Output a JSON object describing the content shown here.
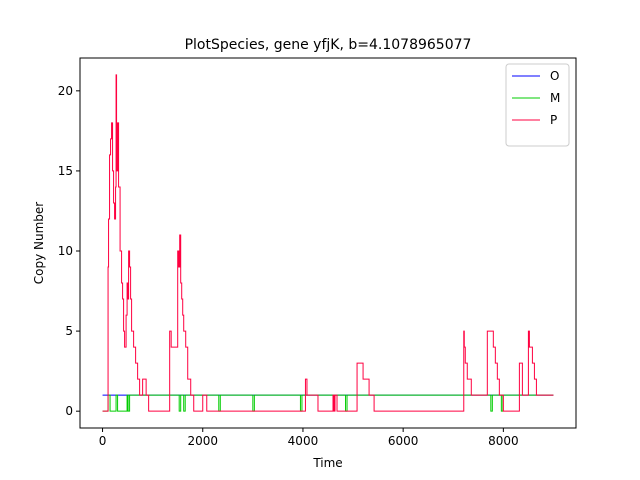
{
  "chart_data": {
    "type": "line",
    "title": "PlotSpecies, gene yfjK, b=4.1078965077",
    "xlabel": "Time",
    "ylabel": "Copy Number",
    "xlim": [
      -450,
      9450
    ],
    "ylim": [
      -1.05,
      22.05
    ],
    "xticks": [
      0,
      2000,
      4000,
      6000,
      8000
    ],
    "yticks": [
      0,
      5,
      10,
      15,
      20
    ],
    "legend_position": "top-right",
    "grid": false,
    "series": [
      {
        "name": "O",
        "color": "#0000ff",
        "x": [
          0,
          9000
        ],
        "y": [
          1,
          1
        ]
      },
      {
        "name": "M",
        "color": "#00cc00",
        "x": [
          0,
          110,
          110,
          150,
          150,
          270,
          270,
          300,
          300,
          490,
          490,
          510,
          510,
          540,
          540,
          1530,
          1530,
          1560,
          1560,
          1620,
          1620,
          1650,
          1650,
          2320,
          2320,
          2350,
          2350,
          3000,
          3000,
          3030,
          3030,
          3950,
          3950,
          3980,
          3980,
          4850,
          4850,
          4880,
          4880,
          7750,
          7750,
          7780,
          7780,
          7960,
          7960,
          7990,
          7990,
          9000
        ],
        "y": [
          0,
          0,
          1,
          1,
          0,
          0,
          1,
          1,
          0,
          0,
          1,
          1,
          0,
          0,
          1,
          1,
          0,
          0,
          1,
          1,
          0,
          0,
          1,
          1,
          0,
          0,
          1,
          1,
          0,
          0,
          1,
          1,
          0,
          0,
          1,
          1,
          0,
          0,
          1,
          1,
          0,
          0,
          1,
          1,
          0,
          0,
          1,
          1
        ]
      },
      {
        "name": "P",
        "color": "#ff0040",
        "x": [
          0,
          110,
          110,
          120,
          120,
          140,
          140,
          160,
          160,
          180,
          180,
          200,
          200,
          220,
          220,
          240,
          240,
          260,
          260,
          270,
          270,
          280,
          280,
          300,
          300,
          320,
          320,
          350,
          350,
          380,
          380,
          400,
          400,
          420,
          420,
          440,
          440,
          470,
          470,
          490,
          490,
          500,
          500,
          520,
          520,
          540,
          540,
          560,
          560,
          580,
          580,
          620,
          620,
          660,
          660,
          700,
          700,
          740,
          740,
          800,
          800,
          870,
          870,
          920,
          920,
          1340,
          1340,
          1370,
          1370,
          1390,
          1390,
          1500,
          1500,
          1520,
          1520,
          1540,
          1540,
          1560,
          1560,
          1580,
          1580,
          1600,
          1600,
          1620,
          1620,
          1660,
          1660,
          1700,
          1700,
          1760,
          1760,
          1820,
          1820,
          2000,
          2000,
          2080,
          2080,
          4050,
          4050,
          4080,
          4080,
          4300,
          4300,
          4600,
          4600,
          4620,
          4620,
          4640,
          4640,
          4680,
          4680,
          5080,
          5080,
          5200,
          5200,
          5320,
          5320,
          5420,
          5420,
          7210,
          7210,
          7220,
          7220,
          7240,
          7240,
          7280,
          7280,
          7360,
          7360,
          7680,
          7680,
          7800,
          7800,
          7840,
          7840,
          7880,
          7880,
          7920,
          7920,
          8000,
          8000,
          8320,
          8320,
          8380,
          8380,
          8500,
          8500,
          8520,
          8520,
          8540,
          8540,
          8580,
          8580,
          8620,
          8620,
          8660,
          8660,
          9000
        ],
        "y": [
          0,
          0,
          9,
          9,
          12,
          12,
          16,
          16,
          17,
          17,
          18,
          18,
          15,
          15,
          13,
          13,
          12,
          12,
          14,
          14,
          21,
          21,
          15,
          15,
          18,
          18,
          14,
          14,
          10,
          10,
          8,
          8,
          7,
          7,
          5,
          5,
          4,
          4,
          6,
          6,
          8,
          8,
          7,
          7,
          10,
          10,
          9,
          9,
          7,
          7,
          5,
          5,
          4,
          4,
          3,
          3,
          2,
          2,
          1,
          1,
          2,
          2,
          1,
          1,
          0,
          0,
          5,
          5,
          4,
          4,
          4,
          4,
          10,
          10,
          9,
          9,
          11,
          11,
          8,
          8,
          7,
          7,
          6,
          6,
          5,
          5,
          4,
          4,
          2,
          2,
          1,
          1,
          0,
          0,
          1,
          1,
          0,
          0,
          2,
          2,
          1,
          1,
          0,
          0,
          1,
          1,
          0,
          0,
          1,
          1,
          0,
          0,
          3,
          3,
          2,
          2,
          1,
          1,
          0,
          0,
          5,
          5,
          4,
          4,
          3,
          3,
          2,
          2,
          1,
          1,
          5,
          5,
          4,
          4,
          3,
          3,
          2,
          2,
          1,
          1,
          0,
          0,
          3,
          3,
          1,
          1,
          5,
          5,
          4,
          4,
          4,
          4,
          3,
          3,
          2,
          2,
          1,
          1
        ]
      }
    ]
  }
}
